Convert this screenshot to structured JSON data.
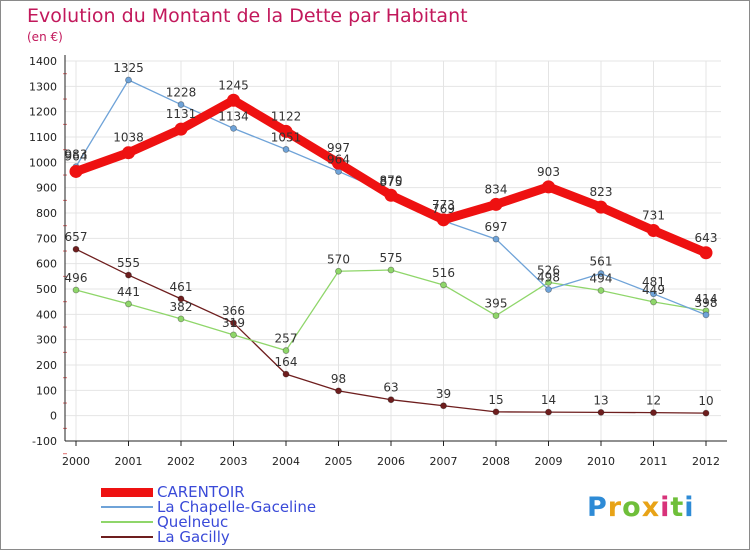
{
  "header": {
    "title": "Evolution du Montant de la Dette par Habitant",
    "subtitle": "(en €)"
  },
  "logo": {
    "text": "Proxiti",
    "letter_colors": [
      "#2e8bd6",
      "#e8a317",
      "#6fbf3a",
      "#e8a317",
      "#d8337a",
      "#6fbf3a",
      "#2e8bd6"
    ]
  },
  "colors": {
    "title": "#c2185b",
    "axis": "#222222",
    "grid": "#e4e4e4",
    "legend_text": "#3a4ad8"
  },
  "chart_data": {
    "type": "line",
    "title": "Evolution du Montant de la Dette par Habitant",
    "subtitle": "(en €)",
    "xlabel": "",
    "ylabel": "",
    "x": [
      "2000",
      "2001",
      "2002",
      "2003",
      "2004",
      "2005",
      "2006",
      "2007",
      "2008",
      "2009",
      "2010",
      "2011",
      "2012"
    ],
    "ylim": [
      -100,
      1400
    ],
    "yticks": [
      -100,
      0,
      100,
      200,
      300,
      400,
      500,
      600,
      700,
      800,
      900,
      1000,
      1100,
      1200,
      1300,
      1400
    ],
    "grid": true,
    "legend_position": "bottom-left",
    "series": [
      {
        "name": "La Gacilly",
        "color": "#6e1e1e",
        "width": "thin",
        "values": [
          657,
          555,
          461,
          366,
          164,
          98,
          63,
          39,
          15,
          14,
          13,
          12,
          10
        ],
        "labels": [
          "657",
          "555",
          "461",
          "366",
          "164",
          "98",
          "63",
          "39",
          "15",
          "14",
          "13",
          "12",
          "10"
        ]
      },
      {
        "name": "Quelneuc",
        "color": "#8fd66a",
        "width": "thin",
        "values": [
          496,
          441,
          382,
          319,
          257,
          570,
          575,
          516,
          395,
          526,
          494,
          449,
          414
        ],
        "labels": [
          "496",
          "441",
          "382",
          "319",
          "257",
          "570",
          "575",
          "516",
          "395",
          "526",
          "494",
          "449",
          "414"
        ]
      },
      {
        "name": "La Chapelle-Gaceline",
        "color": "#6fa3d8",
        "width": "thin",
        "values": [
          983,
          1325,
          1228,
          1134,
          1051,
          964,
          875,
          769,
          697,
          498,
          561,
          481,
          398
        ],
        "labels": [
          "983",
          "1325",
          "1228",
          "1134",
          "1051",
          "964",
          "875",
          "769",
          "697",
          "498",
          "561",
          "481",
          "398"
        ]
      },
      {
        "name": "CARENTOIR",
        "color": "#ee1111",
        "width": "thick",
        "values": [
          964,
          1038,
          1131,
          1245,
          1122,
          997,
          870,
          773,
          834,
          903,
          823,
          731,
          643
        ],
        "labels": [
          "964",
          "1038",
          "1131",
          "1245",
          "1122",
          "997",
          "870",
          "773",
          "834",
          "903",
          "823",
          "731",
          "643"
        ]
      }
    ],
    "legend": [
      "CARENTOIR",
      "La Chapelle-Gaceline",
      "Quelneuc",
      "La Gacilly"
    ]
  }
}
